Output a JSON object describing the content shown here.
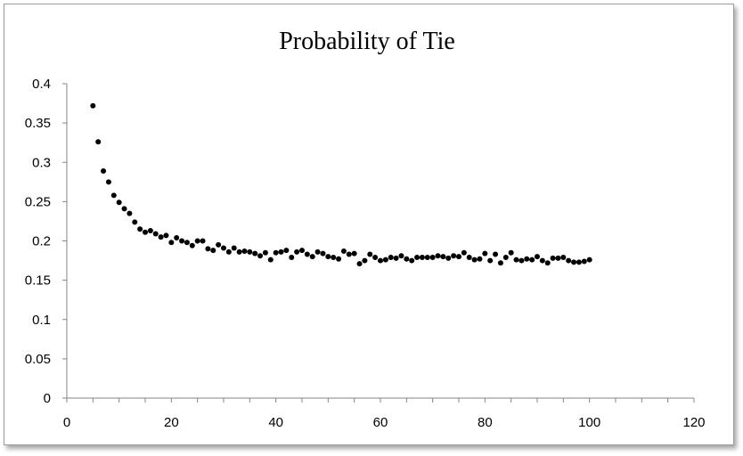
{
  "chart_data": {
    "type": "scatter",
    "title": "Probability of Tie",
    "xlabel": "",
    "ylabel": "",
    "xlim": [
      0,
      120
    ],
    "ylim": [
      0,
      0.4
    ],
    "grid": false,
    "legend": "none",
    "x_ticks": [
      "0",
      "20",
      "40",
      "60",
      "80",
      "100",
      "120"
    ],
    "y_ticks": [
      "0",
      "0.05",
      "0.1",
      "0.15",
      "0.2",
      "0.25",
      "0.3",
      "0.35",
      "0.4"
    ],
    "x_tick_values": [
      0,
      20,
      40,
      60,
      80,
      100,
      120
    ],
    "y_tick_values": [
      0,
      0.05,
      0.1,
      0.15,
      0.2,
      0.25,
      0.3,
      0.35,
      0.4
    ],
    "marker_color": "#000000",
    "x": [
      5,
      6,
      7,
      8,
      9,
      10,
      11,
      12,
      13,
      14,
      15,
      16,
      17,
      18,
      19,
      20,
      21,
      22,
      23,
      24,
      25,
      26,
      27,
      28,
      29,
      30,
      31,
      32,
      33,
      34,
      35,
      36,
      37,
      38,
      39,
      40,
      41,
      42,
      43,
      44,
      45,
      46,
      47,
      48,
      49,
      50,
      51,
      52,
      53,
      54,
      55,
      56,
      57,
      58,
      59,
      60,
      61,
      62,
      63,
      64,
      65,
      66,
      67,
      68,
      69,
      70,
      71,
      72,
      73,
      74,
      75,
      76,
      77,
      78,
      79,
      80,
      81,
      82,
      83,
      84,
      85,
      86,
      87,
      88,
      89,
      90,
      91,
      92,
      93,
      94,
      95,
      96,
      97,
      98,
      99,
      100
    ],
    "y": [
      0.372,
      0.326,
      0.289,
      0.275,
      0.258,
      0.249,
      0.241,
      0.235,
      0.224,
      0.215,
      0.211,
      0.213,
      0.209,
      0.205,
      0.207,
      0.198,
      0.204,
      0.2,
      0.198,
      0.194,
      0.2,
      0.2,
      0.19,
      0.188,
      0.195,
      0.191,
      0.186,
      0.191,
      0.186,
      0.187,
      0.186,
      0.184,
      0.181,
      0.185,
      0.176,
      0.185,
      0.186,
      0.188,
      0.179,
      0.186,
      0.188,
      0.183,
      0.18,
      0.186,
      0.184,
      0.18,
      0.179,
      0.177,
      0.187,
      0.183,
      0.184,
      0.171,
      0.175,
      0.183,
      0.179,
      0.175,
      0.176,
      0.179,
      0.178,
      0.181,
      0.177,
      0.175,
      0.179,
      0.179,
      0.179,
      0.179,
      0.181,
      0.18,
      0.178,
      0.181,
      0.18,
      0.185,
      0.179,
      0.176,
      0.177,
      0.184,
      0.175,
      0.183,
      0.172,
      0.179,
      0.185,
      0.176,
      0.175,
      0.177,
      0.176,
      0.18,
      0.175,
      0.172,
      0.178,
      0.178,
      0.179,
      0.175,
      0.173,
      0.173,
      0.174,
      0.176
    ]
  }
}
